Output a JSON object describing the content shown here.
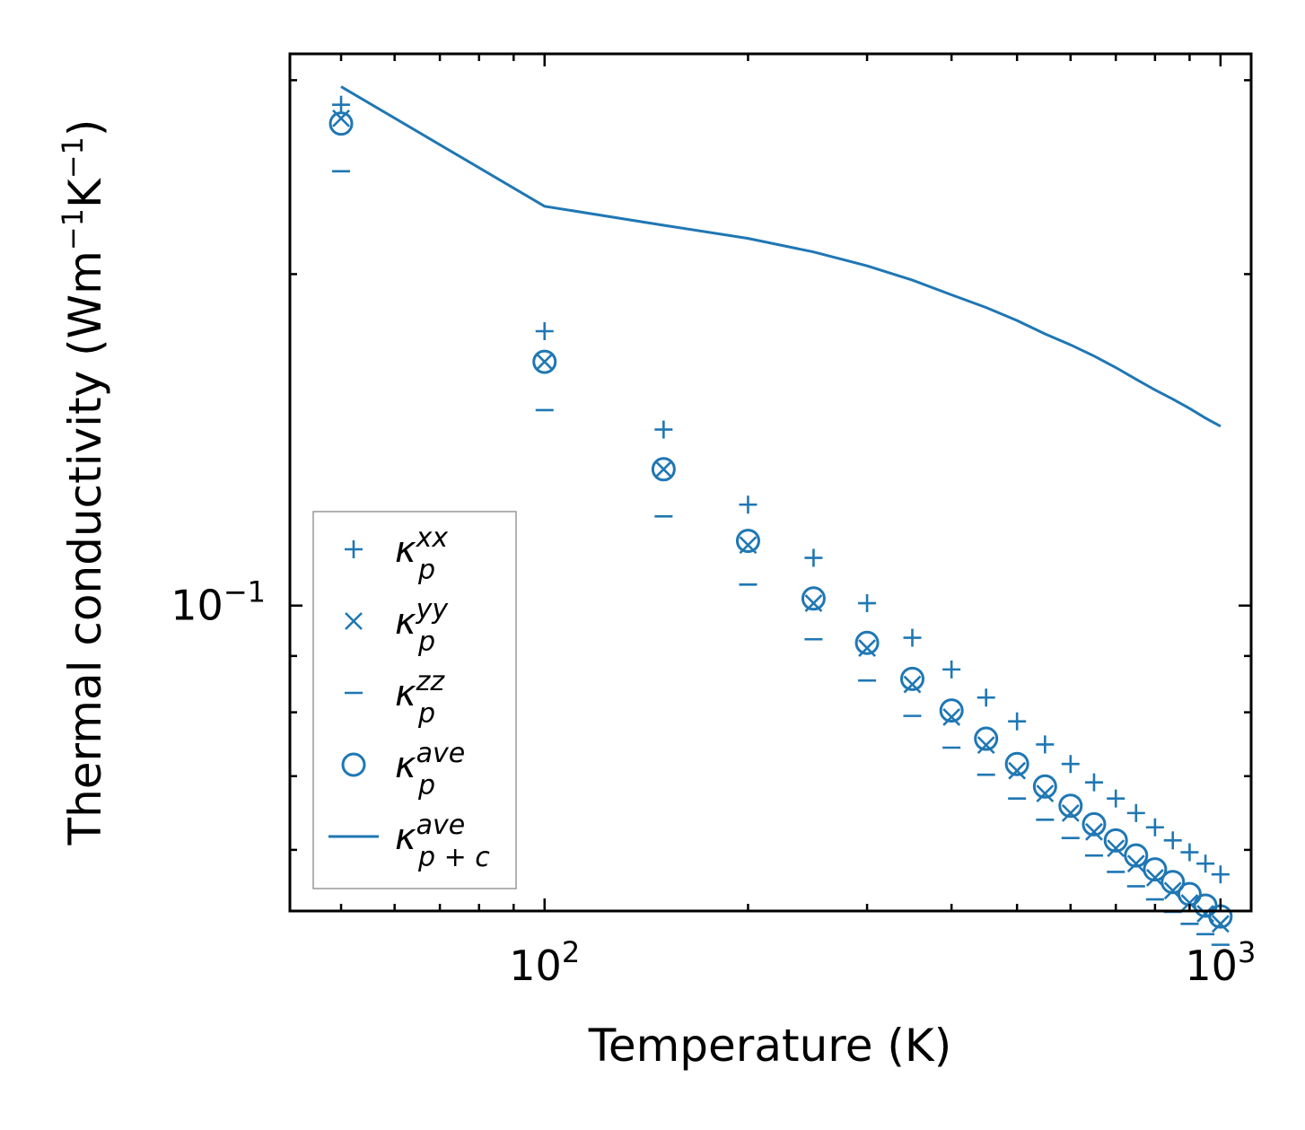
{
  "chart_data": {
    "type": "scatter",
    "xscale": "log",
    "yscale": "log",
    "xlabel": "Temperature (K)",
    "ylabel_main": "Thermal conductivity (Wm",
    "ylabel_sup1": "−1",
    "ylabel_mid": "K",
    "ylabel_sup2": "−1",
    "ylabel_end": ")",
    "xlim": [
      42,
      1110
    ],
    "ylim": [
      0.0528,
      0.317
    ],
    "xticks": [
      {
        "value": 100,
        "base": "10",
        "exp": "2"
      },
      {
        "value": 1000,
        "base": "10",
        "exp": "3"
      }
    ],
    "yticks": [
      {
        "value": 0.1,
        "base": "10",
        "exp": "−1"
      }
    ],
    "x": [
      50,
      100,
      150,
      200,
      250,
      300,
      350,
      400,
      450,
      500,
      550,
      600,
      650,
      700,
      750,
      800,
      850,
      900,
      950,
      1000
    ],
    "series": [
      {
        "name": "kappa_p_xx",
        "legend_base": "κ",
        "legend_sub": "p",
        "legend_sup": "xx",
        "marker": "plus",
        "values": [
          0.285,
          0.1775,
          0.1445,
          0.1235,
          0.1105,
          0.1005,
          0.0935,
          0.0875,
          0.0825,
          0.0785,
          0.0748,
          0.0718,
          0.0691,
          0.0668,
          0.0648,
          0.0629,
          0.0612,
          0.0597,
          0.0583,
          0.057
        ]
      },
      {
        "name": "kappa_p_yy",
        "legend_base": "κ",
        "legend_sub": "p",
        "legend_sup": "yy",
        "marker": "x",
        "values": [
          0.277,
          0.1665,
          0.133,
          0.1135,
          0.1005,
          0.0915,
          0.0848,
          0.0792,
          0.0747,
          0.0708,
          0.0675,
          0.0648,
          0.0623,
          0.0602,
          0.0583,
          0.0566,
          0.0551,
          0.0537,
          0.0525,
          0.0514
        ]
      },
      {
        "name": "kappa_p_zz",
        "legend_base": "κ",
        "legend_sub": "p",
        "legend_sup": "zz",
        "marker": "minus",
        "values": [
          0.248,
          0.1505,
          0.1205,
          0.1045,
          0.0932,
          0.0855,
          0.0794,
          0.0743,
          0.0702,
          0.0668,
          0.0639,
          0.0615,
          0.0593,
          0.0573,
          0.0556,
          0.0541,
          0.0527,
          0.0514,
          0.0503,
          0.0492
        ]
      },
      {
        "name": "kappa_p_ave",
        "legend_base": "κ",
        "legend_sub": "p",
        "legend_sup": "ave",
        "marker": "circle",
        "values": [
          0.274,
          0.1665,
          0.133,
          0.1145,
          0.1015,
          0.0925,
          0.0858,
          0.0803,
          0.0757,
          0.0718,
          0.0685,
          0.0658,
          0.0633,
          0.0612,
          0.0593,
          0.0576,
          0.0561,
          0.0547,
          0.0534,
          0.0522
        ]
      },
      {
        "name": "kappa_pc_ave",
        "legend_base": "κ",
        "legend_sub": "p + c",
        "legend_sup": "ave",
        "marker": "line",
        "values": [
          0.296,
          0.2305,
          0.2215,
          0.2155,
          0.2095,
          0.2035,
          0.1975,
          0.1915,
          0.1865,
          0.1815,
          0.1765,
          0.1725,
          0.1685,
          0.1645,
          0.1605,
          0.157,
          0.154,
          0.151,
          0.148,
          0.1455
        ]
      }
    ],
    "legend_position": "lower-left",
    "color": "#1f77b4"
  }
}
